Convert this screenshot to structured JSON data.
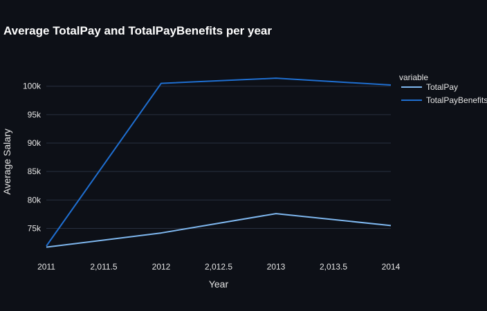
{
  "chart_data": {
    "type": "line",
    "title": "Average TotalPay and TotalPayBenefits per year",
    "xlabel": "Year",
    "ylabel": "Average Salary",
    "x": [
      2011,
      2012,
      2013,
      2014
    ],
    "x_ticks": [
      2011,
      2011.5,
      2012,
      2012.5,
      2013,
      2013.5,
      2014
    ],
    "x_tick_labels": [
      "2011",
      "2,011.5",
      "2012",
      "2,012.5",
      "2013",
      "2,013.5",
      "2014"
    ],
    "y_ticks": [
      75000,
      80000,
      85000,
      90000,
      95000,
      100000
    ],
    "y_tick_labels": [
      "75k",
      "80k",
      "85k",
      "90k",
      "95k",
      "100k"
    ],
    "xlim": [
      2011,
      2014
    ],
    "ylim": [
      70200,
      103000
    ],
    "grid": true,
    "legend_title": "variable",
    "legend_position": "right",
    "series": [
      {
        "name": "TotalPay",
        "color": "#7fb8f0",
        "values": [
          71700,
          74200,
          77600,
          75500
        ]
      },
      {
        "name": "TotalPayBenefits",
        "color": "#1f6fd1",
        "values": [
          71900,
          100500,
          101400,
          100200
        ]
      }
    ]
  }
}
